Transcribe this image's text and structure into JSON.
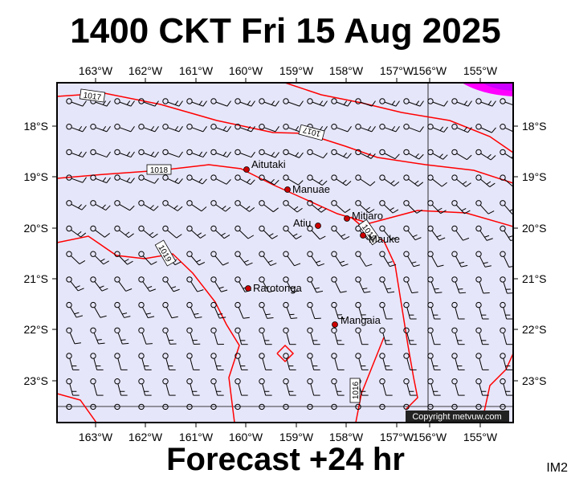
{
  "header": {
    "title": "1400 CKT Fri 15 Aug 2025"
  },
  "footer": {
    "forecast": "Forecast +24 hr",
    "product_code": "IM2"
  },
  "map": {
    "longitude_labels": [
      "163°W",
      "162°W",
      "161°W",
      "160°W",
      "159°W",
      "158°W",
      "157°W",
      "156°W",
      "155°W"
    ],
    "latitude_labels": [
      "18°S",
      "19°S",
      "20°S",
      "21°S",
      "22°S",
      "23°S"
    ],
    "places": [
      {
        "name": "Aitutaki"
      },
      {
        "name": "Manuae"
      },
      {
        "name": "Mitiaro"
      },
      {
        "name": "Atiu"
      },
      {
        "name": "Mauke"
      },
      {
        "name": "Rarotonga"
      },
      {
        "name": "Mangaia"
      }
    ],
    "isobar_labels": [
      "1017",
      "1017",
      "1018",
      "1019",
      "1018",
      "1016"
    ],
    "copyright": "Copyright metvuw.com",
    "colors": {
      "sea": "#e6e6fa",
      "isobar": "#ff0000",
      "place_dot": "#cc0000",
      "rain": "#ff00ff"
    }
  }
}
